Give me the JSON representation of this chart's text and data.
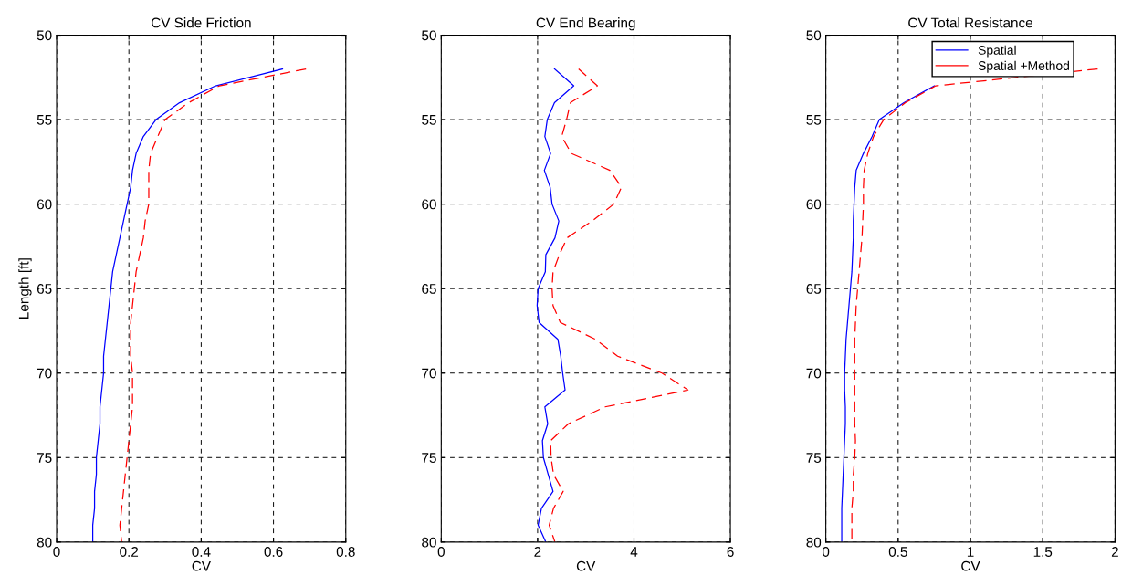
{
  "chart_data": [
    {
      "type": "line",
      "title": "CV Side Friction",
      "xlabel": "CV",
      "ylabel": "Length [ft]",
      "xlim": [
        0,
        0.8
      ],
      "xticks": [
        0,
        0.2,
        0.4,
        0.6,
        0.8
      ],
      "ylim": [
        80,
        50
      ],
      "yticks": [
        50,
        55,
        60,
        65,
        70,
        75,
        80
      ],
      "grid": true,
      "legend": false,
      "series": [
        {
          "color": "#0000ff",
          "line_style": "solid",
          "x": [
            0.625,
            0.44,
            0.34,
            0.275,
            0.24,
            0.22,
            0.21,
            0.205,
            0.195,
            0.185,
            0.175,
            0.165,
            0.155,
            0.15,
            0.145,
            0.14,
            0.135,
            0.13,
            0.13,
            0.125,
            0.12,
            0.12,
            0.115,
            0.11,
            0.11,
            0.105,
            0.105,
            0.1,
            0.1
          ],
          "values": [
            52,
            53,
            54,
            55,
            56,
            57,
            58,
            59,
            60,
            61,
            62,
            63,
            64,
            65,
            66,
            67,
            68,
            69,
            70,
            71,
            72,
            73,
            74,
            75,
            76,
            77,
            78,
            79,
            80
          ]
        },
        {
          "color": "#ff0000",
          "line_style": "dashed",
          "x": [
            0.69,
            0.45,
            0.365,
            0.3,
            0.28,
            0.26,
            0.255,
            0.255,
            0.255,
            0.245,
            0.24,
            0.23,
            0.22,
            0.215,
            0.21,
            0.205,
            0.205,
            0.205,
            0.21,
            0.21,
            0.21,
            0.205,
            0.2,
            0.195,
            0.19,
            0.185,
            0.18,
            0.175,
            0.18
          ],
          "values": [
            52,
            53,
            54,
            55,
            56,
            57,
            58,
            59,
            60,
            61,
            62,
            63,
            64,
            65,
            66,
            67,
            68,
            69,
            70,
            71,
            72,
            73,
            74,
            75,
            76,
            77,
            78,
            79,
            80
          ]
        }
      ]
    },
    {
      "type": "line",
      "title": "CV End Bearing",
      "xlabel": "CV",
      "xlim": [
        0,
        6
      ],
      "xticks": [
        0,
        2,
        4,
        6
      ],
      "ylim": [
        80,
        50
      ],
      "yticks": [
        50,
        55,
        60,
        65,
        70,
        75,
        80
      ],
      "grid": true,
      "legend": false,
      "series": [
        {
          "color": "#0000ff",
          "line_style": "solid",
          "x": [
            2.35,
            2.75,
            2.35,
            2.2,
            2.15,
            2.27,
            2.14,
            2.26,
            2.3,
            2.44,
            2.36,
            2.17,
            2.16,
            2.01,
            1.99,
            2.03,
            2.42,
            2.48,
            2.52,
            2.57,
            2.15,
            2.21,
            2.1,
            2.12,
            2.22,
            2.32,
            2.08,
            2.01,
            2.17
          ],
          "values": [
            52,
            53,
            54,
            55,
            56,
            57,
            58,
            59,
            60,
            61,
            62,
            63,
            64,
            65,
            66,
            67,
            68,
            69,
            70,
            71,
            72,
            73,
            74,
            75,
            76,
            77,
            78,
            79,
            80
          ]
        },
        {
          "color": "#ff0000",
          "line_style": "dashed",
          "x": [
            2.85,
            3.24,
            2.68,
            2.6,
            2.5,
            2.7,
            3.5,
            3.74,
            3.58,
            3.13,
            2.61,
            2.45,
            2.32,
            2.3,
            2.32,
            2.47,
            3.2,
            3.66,
            4.58,
            5.12,
            3.4,
            2.64,
            2.27,
            2.28,
            2.33,
            2.53,
            2.33,
            2.24,
            2.36
          ],
          "values": [
            52,
            53,
            54,
            55,
            56,
            57,
            58,
            59,
            60,
            61,
            62,
            63,
            64,
            65,
            66,
            67,
            68,
            69,
            70,
            71,
            72,
            73,
            74,
            75,
            76,
            77,
            78,
            79,
            80
          ]
        }
      ]
    },
    {
      "type": "line",
      "title": "CV Total Resistance",
      "xlabel": "CV",
      "xlim": [
        0,
        2
      ],
      "xticks": [
        0,
        0.5,
        1,
        1.5,
        2
      ],
      "ylim": [
        80,
        50
      ],
      "yticks": [
        50,
        55,
        60,
        65,
        70,
        75,
        80
      ],
      "grid": true,
      "legend": "top right",
      "series": [
        {
          "name": "Spatial",
          "color": "#0000ff",
          "line_style": "solid",
          "x": [
            0.75,
            0.54,
            0.37,
            0.32,
            0.26,
            0.21,
            0.2,
            0.195,
            0.19,
            0.19,
            0.185,
            0.18,
            0.17,
            0.16,
            0.15,
            0.14,
            0.135,
            0.13,
            0.13,
            0.135,
            0.135,
            0.13,
            0.125,
            0.12,
            0.115,
            0.11,
            0.11,
            0.11
          ],
          "values": [
            53,
            54,
            55,
            56,
            57,
            58,
            59,
            60,
            61,
            62,
            63,
            64,
            65,
            66,
            67,
            68,
            69,
            70,
            71,
            72,
            73,
            74,
            75,
            76,
            77,
            78,
            79,
            80
          ]
        },
        {
          "name": "Spatial +Method",
          "color": "#ff0000",
          "line_style": "dashed",
          "x": [
            1.88,
            0.76,
            0.55,
            0.4,
            0.33,
            0.29,
            0.265,
            0.26,
            0.26,
            0.255,
            0.25,
            0.24,
            0.23,
            0.22,
            0.21,
            0.205,
            0.2,
            0.2,
            0.2,
            0.2,
            0.2,
            0.2,
            0.205,
            0.2,
            0.19,
            0.19,
            0.18,
            0.18,
            0.18
          ],
          "values": [
            52,
            53,
            54,
            55,
            56,
            57,
            58,
            59,
            60,
            61,
            62,
            63,
            64,
            65,
            66,
            67,
            68,
            69,
            70,
            71,
            72,
            73,
            74,
            75,
            76,
            77,
            78,
            79,
            80
          ]
        }
      ]
    }
  ]
}
